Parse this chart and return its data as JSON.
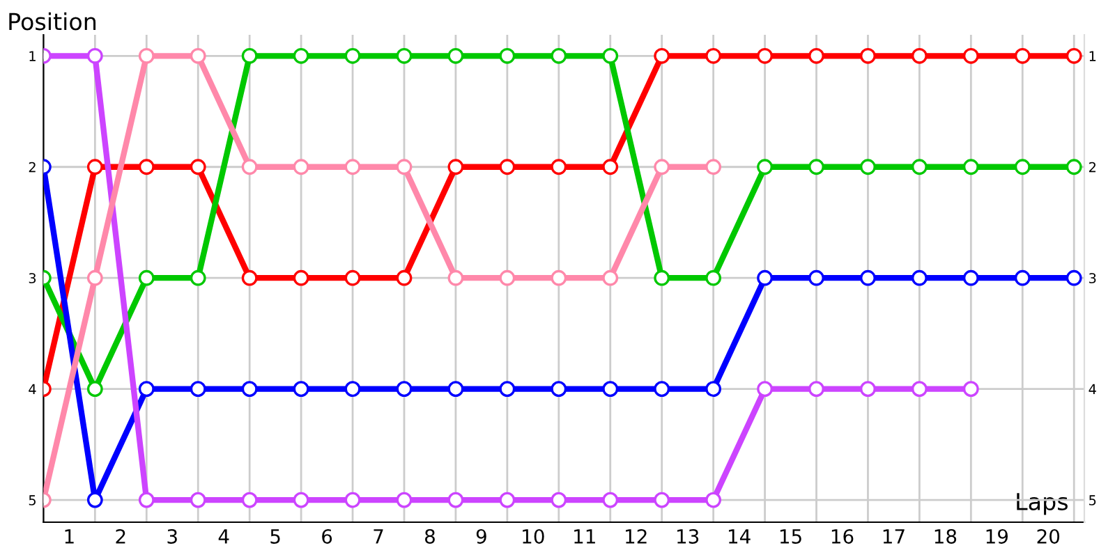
{
  "chart_data": {
    "type": "line",
    "xlabel": "Laps",
    "ylabel": "Position",
    "x": [
      0,
      1,
      2,
      3,
      4,
      5,
      6,
      7,
      8,
      9,
      10,
      11,
      12,
      13,
      14,
      15,
      16,
      17,
      18,
      19,
      20
    ],
    "series": [
      {
        "color": "#ff0000",
        "values": [
          4,
          2,
          2,
          2,
          3,
          3,
          3,
          3,
          2,
          2,
          2,
          2,
          1,
          1,
          1,
          1,
          1,
          1,
          1,
          1,
          1
        ]
      },
      {
        "color": "#00c800",
        "values": [
          3,
          4,
          3,
          3,
          1,
          1,
          1,
          1,
          1,
          1,
          1,
          1,
          3,
          3,
          2,
          2,
          2,
          2,
          2,
          2,
          2
        ]
      },
      {
        "color": "#0000ff",
        "values": [
          2,
          5,
          4,
          4,
          4,
          4,
          4,
          4,
          4,
          4,
          4,
          4,
          4,
          4,
          3,
          3,
          3,
          3,
          3,
          3,
          3
        ]
      },
      {
        "color": "#cc44ff",
        "values": [
          1,
          1,
          5,
          5,
          5,
          5,
          5,
          5,
          5,
          5,
          5,
          5,
          5,
          5,
          4,
          4,
          4,
          4,
          4,
          null,
          null
        ]
      },
      {
        "color": "#ff88aa",
        "values": [
          5,
          3,
          1,
          1,
          2,
          2,
          2,
          2,
          3,
          3,
          3,
          3,
          2,
          2,
          null,
          null,
          null,
          null,
          null,
          null,
          null
        ]
      }
    ],
    "xlim": [
      0,
      20.2
    ],
    "xticks": [
      {
        "value": 0,
        "label": null
      },
      {
        "value": 0.5,
        "label": "1"
      },
      {
        "value": 1,
        "label": null
      },
      {
        "value": 1.5,
        "label": "2"
      },
      {
        "value": 2,
        "label": null
      },
      {
        "value": 2.5,
        "label": "3"
      },
      {
        "value": 3,
        "label": null
      },
      {
        "value": 3.5,
        "label": "4"
      },
      {
        "value": 4,
        "label": null
      },
      {
        "value": 4.5,
        "label": "5"
      },
      {
        "value": 5,
        "label": null
      },
      {
        "value": 5.5,
        "label": "6"
      },
      {
        "value": 6,
        "label": null
      },
      {
        "value": 6.5,
        "label": "7"
      },
      {
        "value": 7,
        "label": null
      },
      {
        "value": 7.5,
        "label": "8"
      },
      {
        "value": 8,
        "label": null
      },
      {
        "value": 8.5,
        "label": "9"
      },
      {
        "value": 9,
        "label": null
      },
      {
        "value": 9.5,
        "label": "10"
      },
      {
        "value": 10,
        "label": null
      },
      {
        "value": 10.5,
        "label": "11"
      },
      {
        "value": 11,
        "label": null
      },
      {
        "value": 11.5,
        "label": "12"
      },
      {
        "value": 12,
        "label": null
      },
      {
        "value": 12.5,
        "label": "13"
      },
      {
        "value": 13,
        "label": null
      },
      {
        "value": 13.5,
        "label": "14"
      },
      {
        "value": 14,
        "label": null
      },
      {
        "value": 14.5,
        "label": "15"
      },
      {
        "value": 15,
        "label": null
      },
      {
        "value": 15.5,
        "label": "16"
      },
      {
        "value": 16,
        "label": null
      },
      {
        "value": 16.5,
        "label": "17"
      },
      {
        "value": 17,
        "label": null
      },
      {
        "value": 17.5,
        "label": "18"
      },
      {
        "value": 18,
        "label": null
      },
      {
        "value": 18.5,
        "label": "19"
      },
      {
        "value": 19,
        "label": null
      },
      {
        "value": 19.5,
        "label": "20"
      },
      {
        "value": 20,
        "label": null
      }
    ],
    "ylim": [
      5.2,
      0.81
    ],
    "yticks": [
      1,
      2,
      3,
      4,
      5
    ],
    "y2lim": [
      5.2,
      0.81
    ],
    "y2ticks": [
      1,
      2,
      3,
      4,
      5
    ],
    "grid": true,
    "marker": "circle",
    "line_style": "solid",
    "legend": false
  }
}
